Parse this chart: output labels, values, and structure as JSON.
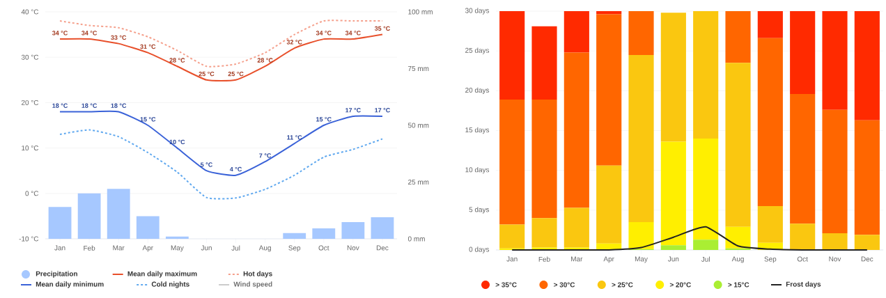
{
  "chart_data": [
    {
      "type": "line",
      "categories": [
        "Jan",
        "Feb",
        "Mar",
        "Apr",
        "May",
        "Jun",
        "Jul",
        "Aug",
        "Sep",
        "Oct",
        "Nov",
        "Dec"
      ],
      "ylim": [
        -10,
        40
      ],
      "yticks": [
        {
          "value": -10,
          "label": "-10 °C"
        },
        {
          "value": 0,
          "label": "0 °C"
        },
        {
          "value": 10,
          "label": "10 °C"
        },
        {
          "value": 20,
          "label": "20 °C"
        },
        {
          "value": 30,
          "label": "30 °C"
        },
        {
          "value": 40,
          "label": "40 °C"
        }
      ],
      "y2lim": [
        0,
        100
      ],
      "y2ticks": [
        {
          "value": 0,
          "label": "0 mm"
        },
        {
          "value": 25,
          "label": "25 mm"
        },
        {
          "value": 50,
          "label": "50 mm"
        },
        {
          "value": 75,
          "label": "75 mm"
        },
        {
          "value": 100,
          "label": "100 mm"
        }
      ],
      "grid": "y",
      "legend": "bottom",
      "marker": "none",
      "series": [
        {
          "name": "Precipitation",
          "type": "bar",
          "axis": "y2",
          "color": "#a6c8ff",
          "values": [
            14,
            20,
            22,
            10,
            1,
            0,
            0,
            0,
            2.5,
            4.6,
            7.4,
            9.5
          ]
        },
        {
          "name": "Mean daily maximum",
          "type": "line",
          "color": "#e8502b",
          "line_style": "solid",
          "values": [
            34,
            34,
            33,
            31,
            28,
            25,
            25,
            28,
            32,
            34,
            34,
            35
          ],
          "value_labels": [
            "34 °C",
            "34 °C",
            "33 °C",
            "31 °C",
            "28 °C",
            "25 °C",
            "25 °C",
            "28 °C",
            "32 °C",
            "34 °C",
            "34 °C",
            "35 °C"
          ]
        },
        {
          "name": "Hot days",
          "type": "line",
          "color": "#f5a08c",
          "line_style": "dashed",
          "values": [
            38,
            37,
            36.5,
            34.5,
            31.5,
            28,
            28.5,
            31,
            35,
            38,
            38,
            38
          ]
        },
        {
          "name": "Mean daily minimum",
          "type": "line",
          "color": "#3a62d8",
          "line_style": "solid",
          "values": [
            18,
            18,
            18,
            15,
            10,
            5,
            4,
            7,
            11,
            15,
            17,
            17
          ],
          "value_labels": [
            "18 °C",
            "18 °C",
            "18 °C",
            "15 °C",
            "10 °C",
            "5 °C",
            "4 °C",
            "7 °C",
            "11 °C",
            "15 °C",
            "17 °C",
            "17 °C"
          ]
        },
        {
          "name": "Cold nights",
          "type": "line",
          "color": "#5fa8ef",
          "line_style": "dashed",
          "values": [
            13,
            14,
            12.5,
            9,
            4.7,
            -0.9,
            -1,
            0.9,
            4,
            8,
            9.7,
            12
          ]
        },
        {
          "name": "Wind speed",
          "type": "line",
          "color": "#cccccc",
          "line_style": "solid",
          "values": [
            null,
            null,
            null,
            null,
            null,
            null,
            null,
            null,
            null,
            null,
            null,
            null
          ]
        }
      ]
    },
    {
      "type": "bar",
      "stacked": true,
      "categories": [
        "Jan",
        "Feb",
        "Mar",
        "Apr",
        "May",
        "Jun",
        "Jul",
        "Aug",
        "Sep",
        "Oct",
        "Nov",
        "Dec"
      ],
      "ylim": [
        0,
        30
      ],
      "yticks": [
        {
          "value": 0,
          "label": "0 days"
        },
        {
          "value": 5,
          "label": "5 days"
        },
        {
          "value": 10,
          "label": "10 days"
        },
        {
          "value": 15,
          "label": "15 days"
        },
        {
          "value": 20,
          "label": "20 days"
        },
        {
          "value": 25,
          "label": "25 days"
        },
        {
          "value": 30,
          "label": "30 days"
        }
      ],
      "grid": "y",
      "legend": "bottom",
      "series": [
        {
          "name": "> 15°C",
          "color": "#aaee33",
          "values": [
            0,
            0,
            0,
            0,
            0.1,
            0.6,
            1.3,
            0.2,
            0,
            0,
            0,
            0
          ]
        },
        {
          "name": "> 20°C",
          "color": "#ffef00",
          "values": [
            0.2,
            0.3,
            0.3,
            0.8,
            3.4,
            13,
            12.7,
            2.7,
            0.9,
            0,
            0,
            0
          ]
        },
        {
          "name": "> 25°C",
          "color": "#fac710",
          "values": [
            3,
            3.7,
            5,
            9.8,
            21,
            16.2,
            16,
            20.6,
            4.6,
            3.3,
            2.1,
            1.9
          ]
        },
        {
          "name": "> 30°C",
          "color": "#ff6600",
          "values": [
            15.7,
            14.9,
            19.5,
            19,
            5.5,
            0,
            0,
            6.5,
            21.1,
            16.3,
            15.5,
            14.4
          ]
        },
        {
          "name": "> 35°C",
          "color": "#ff2a00",
          "values": [
            11.1,
            9.2,
            5.2,
            0.4,
            0,
            0,
            0,
            0,
            3.4,
            10.4,
            12.4,
            13.7
          ]
        },
        {
          "name": "Frost days",
          "type": "line",
          "color": "#222222",
          "line_style": "solid",
          "values": [
            0,
            0,
            0,
            0,
            0.3,
            1.6,
            2.9,
            0.5,
            0.1,
            0,
            0,
            0
          ]
        }
      ]
    }
  ]
}
